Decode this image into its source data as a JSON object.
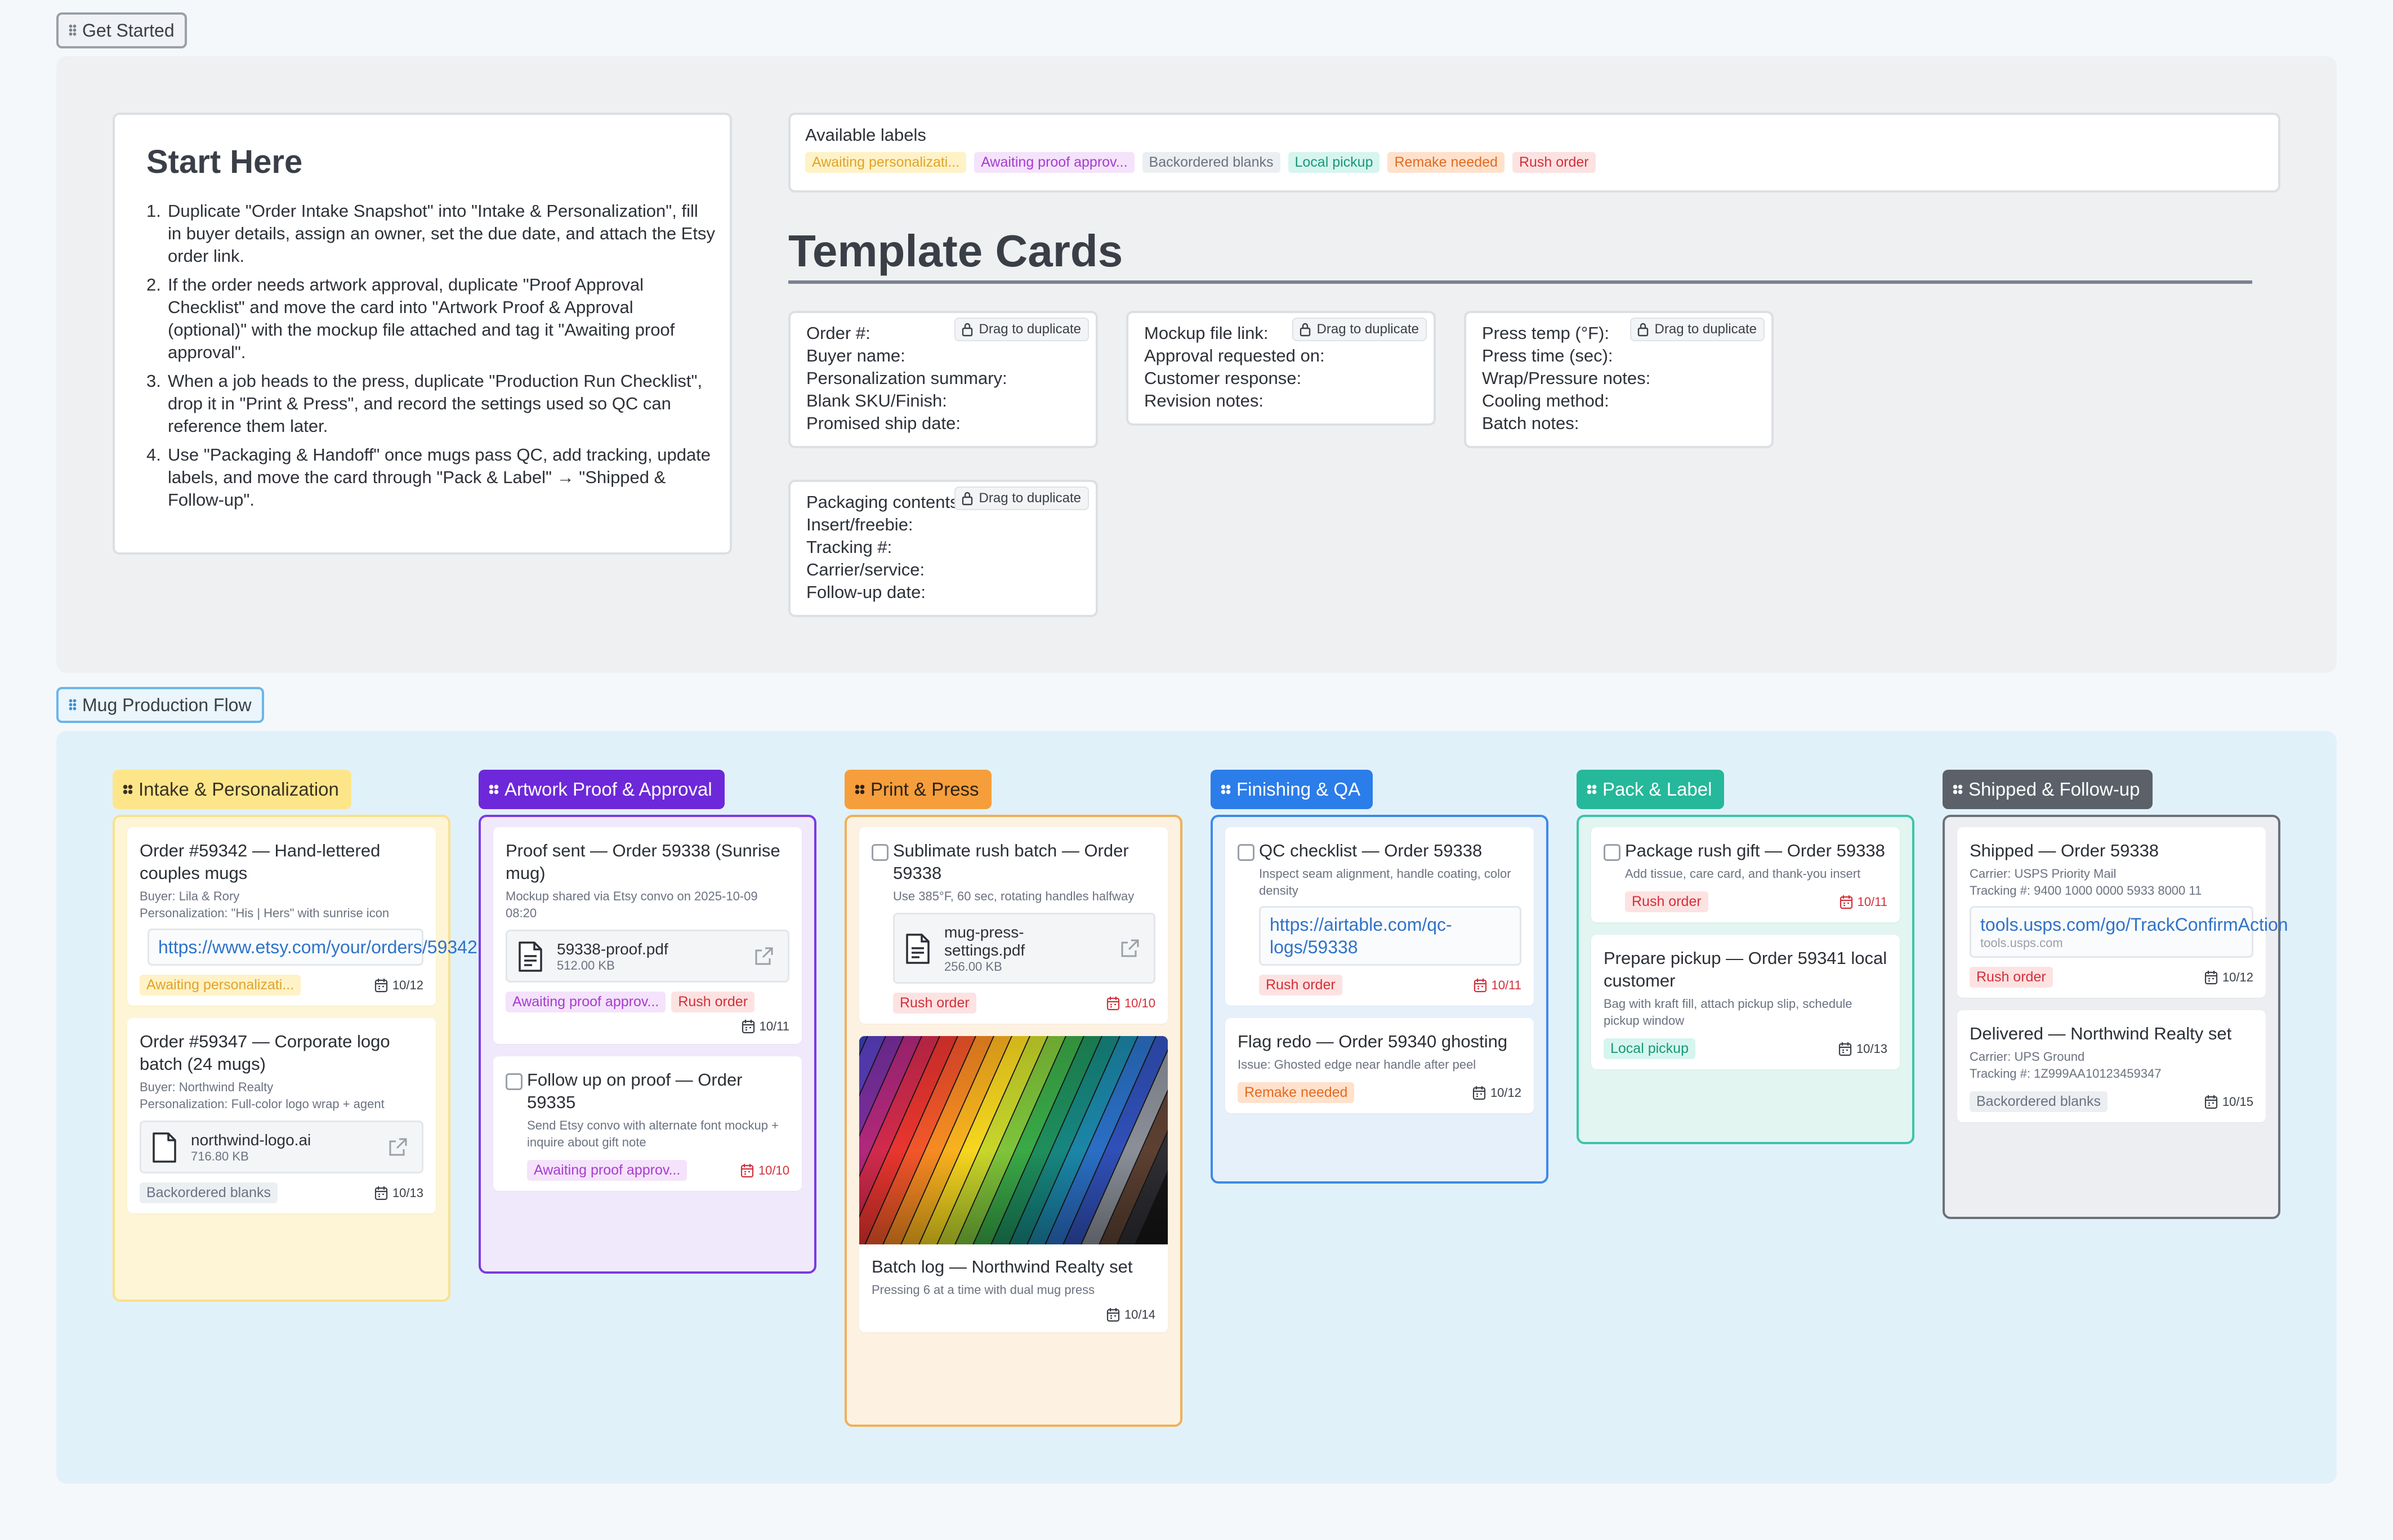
{
  "sections": {
    "get_started": "Get Started",
    "mug_flow": "Mug Production Flow"
  },
  "start": {
    "title": "Start Here",
    "steps": [
      {
        "n": "1.",
        "text": "Duplicate \"Order Intake Snapshot\" into \"Intake & Personalization\", fill in buyer details, assign an owner, set the due date, and attach the Etsy order link."
      },
      {
        "n": "2.",
        "text": "If the order needs artwork approval, duplicate \"Proof Approval Checklist\" and move the card into \"Artwork Proof & Approval (optional)\" with the mockup file attached and tag it \"Awaiting proof approval\"."
      },
      {
        "n": "3.",
        "text": "When a job heads to the press, duplicate \"Production Run Checklist\", drop it in \"Print & Press\", and record the settings used so QC can reference them later."
      },
      {
        "n": "4.",
        "text": "Use \"Packaging & Handoff\" once mugs pass QC, add tracking, update labels, and move the card through \"Pack & Label\" → \"Shipped & Follow-up\"."
      }
    ]
  },
  "labels": {
    "title": "Available labels",
    "items": [
      "Awaiting personalizati...",
      "Awaiting proof approv...",
      "Backordered blanks",
      "Local pickup",
      "Remake needed",
      "Rush order"
    ]
  },
  "templates": {
    "heading": "Template Cards",
    "drag_label": "Drag to duplicate",
    "cards": [
      {
        "lines": [
          "Order #:",
          "Buyer name:",
          "Personalization summary:",
          "Blank SKU/Finish:",
          "Promised ship date:"
        ]
      },
      {
        "lines": [
          "Mockup file link:",
          "Approval requested on:",
          "Customer response:",
          "Revision notes:"
        ]
      },
      {
        "lines": [
          "Press temp (°F):",
          "Press time (sec):",
          "Wrap/Pressure notes:",
          "Cooling method:",
          "Batch notes:"
        ]
      },
      {
        "lines": [
          "Packaging contents:",
          "Insert/freebie:",
          "Tracking #:",
          "Carrier/service:",
          "Follow-up date:"
        ]
      }
    ]
  },
  "columns": [
    {
      "title": "Intake & Personalization",
      "cards": [
        {
          "title": "Order #59342 — Hand-lettered couples mugs",
          "meta": [
            "Buyer: Lila & Rory",
            "Personalization: \"His | Hers\" with sunrise icon"
          ],
          "link": "https://www.etsy.com/your/orders/59342",
          "tags": [
            "Awaiting personalizati..."
          ],
          "due": "10/12"
        },
        {
          "title": "Order #59347 — Corporate logo batch (24 mugs)",
          "meta": [
            "Buyer: Northwind Realty",
            "Personalization: Full-color logo wrap + agent"
          ],
          "file": {
            "name": "northwind-logo.ai",
            "size": "716.80 KB"
          },
          "tags": [
            "Backordered blanks"
          ],
          "due": "10/13"
        }
      ]
    },
    {
      "title": "Artwork Proof & Approval",
      "cards": [
        {
          "title": "Proof sent — Order 59338 (Sunrise mug)",
          "meta": [
            "Mockup shared via Etsy convo on 2025-10-09 08:20"
          ],
          "file": {
            "name": "59338-proof.pdf",
            "size": "512.00 KB"
          },
          "tags": [
            "Awaiting proof approv...",
            "Rush order"
          ],
          "due": "10/11"
        },
        {
          "title": "Follow up on proof — Order 59335",
          "meta": [
            "Send Etsy convo with alternate font mockup + inquire about gift note"
          ],
          "tags": [
            "Awaiting proof approv..."
          ],
          "due": "10/10"
        }
      ]
    },
    {
      "title": "Print & Press",
      "cards": [
        {
          "title": "Sublimate rush batch — Order 59338",
          "meta": [
            "Use 385°F, 60 sec, rotating handles halfway"
          ],
          "file": {
            "name": "mug-press-settings.pdf",
            "size": "256.00 KB"
          },
          "tags": [
            "Rush order"
          ],
          "due": "10/10"
        },
        {
          "title": "Batch log — Northwind Realty set",
          "meta": [
            "Pressing 6 at a time with dual mug press"
          ],
          "tags": [],
          "due": "10/14"
        }
      ]
    },
    {
      "title": "Finishing & QA",
      "cards": [
        {
          "title": "QC checklist — Order 59338",
          "meta": [
            "Inspect seam alignment, handle coating, color density"
          ],
          "link": "https://airtable.com/qc-logs/59338",
          "tags": [
            "Rush order"
          ],
          "due": "10/11"
        },
        {
          "title": "Flag redo — Order 59340 ghosting",
          "meta": [
            "Issue: Ghosted edge near handle after peel"
          ],
          "tags": [
            "Remake needed"
          ],
          "due": "10/12"
        }
      ]
    },
    {
      "title": "Pack & Label",
      "cards": [
        {
          "title": "Package rush gift — Order 59338",
          "meta": [
            "Add tissue, care card, and thank-you insert"
          ],
          "tags": [
            "Rush order"
          ],
          "due": "10/11"
        },
        {
          "title": "Prepare pickup — Order 59341 local customer",
          "meta": [
            "Bag with kraft fill, attach pickup slip, schedule pickup window"
          ],
          "tags": [
            "Local pickup"
          ],
          "due": "10/13"
        }
      ]
    },
    {
      "title": "Shipped & Follow-up",
      "cards": [
        {
          "title": "Shipped — Order 59338",
          "meta": [
            "Carrier: USPS Priority Mail",
            "Tracking #: 9400 1000 0000 5933 8000 11"
          ],
          "link": "tools.usps.com/go/TrackConfirmAction",
          "link_domain": "tools.usps.com",
          "tags": [
            "Rush order"
          ],
          "due": "10/12"
        },
        {
          "title": "Delivered — Northwind Realty set",
          "meta": [
            "Carrier: UPS Ground",
            "Tracking #: 1Z999AA10123459347"
          ],
          "tags": [
            "Backordered blanks"
          ],
          "due": "10/15"
        }
      ]
    }
  ],
  "colors": {
    "yellow": "#fde68a",
    "purple": "#6d28d9",
    "orange": "#f59e3b",
    "blue": "#2b7de9",
    "teal": "#25b89a",
    "slate": "#5b6069"
  }
}
